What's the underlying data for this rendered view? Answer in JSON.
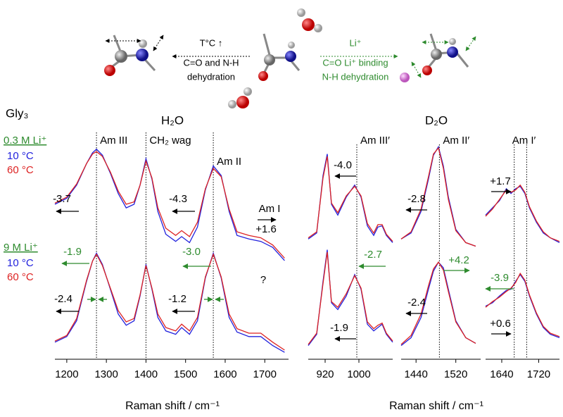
{
  "header": {
    "title": "Gly₃"
  },
  "scheme": {
    "left": [
      "T°C ↑",
      "C=O and N-H",
      "dehydration"
    ],
    "left_color": "#000000",
    "right": [
      "Li⁺",
      "C=O Li⁺ binding",
      "N-H dehydration"
    ],
    "right_color": "#2e8b2e"
  },
  "chart_data": [
    {
      "type": "line",
      "title": "H₂O",
      "xlabel": "Raman shift / cm⁻¹",
      "group_color": "#2e8b2e",
      "xlim": [
        1170,
        1760
      ],
      "xticks": [
        1200,
        1300,
        1400,
        1500,
        1600,
        1700
      ],
      "ylim": [
        0,
        100
      ],
      "x": [
        1170,
        1200,
        1225,
        1250,
        1265,
        1275,
        1290,
        1310,
        1330,
        1350,
        1370,
        1385,
        1400,
        1415,
        1430,
        1450,
        1475,
        1490,
        1510,
        1530,
        1550,
        1570,
        1590,
        1610,
        1630,
        1660,
        1690,
        1720,
        1750
      ],
      "series": [
        {
          "group": "0.3 M Li⁺",
          "name": "10 °C",
          "color": "#2222dd",
          "values": [
            50,
            55,
            66,
            84,
            93,
            96,
            91,
            76,
            59,
            47,
            50,
            66,
            88,
            71,
            44,
            25,
            19,
            23,
            18,
            31,
            62,
            82,
            74,
            44,
            24,
            21,
            19,
            14,
            3
          ]
        },
        {
          "group": "0.3 M Li⁺",
          "name": "60 °C",
          "color": "#dd2222",
          "values": [
            51,
            56,
            67,
            84,
            92,
            94,
            90,
            77,
            61,
            50,
            52,
            66,
            86,
            72,
            47,
            30,
            24,
            28,
            23,
            35,
            63,
            80,
            73,
            46,
            27,
            24,
            22,
            16,
            5
          ]
        },
        {
          "group": "9 M Li⁺",
          "name": "10 °C",
          "color": "#2222dd",
          "values": [
            12,
            17,
            31,
            66,
            84,
            91,
            81,
            59,
            37,
            27,
            31,
            53,
            81,
            59,
            34,
            22,
            19,
            25,
            19,
            31,
            69,
            91,
            69,
            34,
            21,
            17,
            17,
            9,
            3
          ]
        },
        {
          "group": "9 M Li⁺",
          "name": "60 °C",
          "color": "#dd2222",
          "values": [
            13,
            18,
            33,
            67,
            84,
            90,
            80,
            60,
            40,
            30,
            33,
            54,
            80,
            60,
            37,
            25,
            22,
            28,
            22,
            34,
            70,
            90,
            70,
            37,
            24,
            20,
            20,
            12,
            5
          ]
        }
      ],
      "markers": [
        {
          "label": "Am III",
          "x": 1275
        },
        {
          "label": "CH₂ wag",
          "x": 1400
        },
        {
          "label": "Am II",
          "x": 1570
        }
      ],
      "annotations": [
        {
          "text": "-3.7",
          "color": "#000000",
          "arrow": "left"
        },
        {
          "text": "-4.3",
          "color": "#000000",
          "arrow": "left"
        },
        {
          "text": "Am I",
          "color": "#000000",
          "arrow": "none"
        },
        {
          "text": "+1.6",
          "color": "#000000",
          "arrow": "right"
        },
        {
          "text": "-1.9",
          "color": "#2e8b2e",
          "arrow": "left"
        },
        {
          "text": "-3.0",
          "color": "#2e8b2e",
          "arrow": "left"
        },
        {
          "text": "-2.4",
          "color": "#000000",
          "arrow": "left"
        },
        {
          "text": "-1.2",
          "color": "#000000",
          "arrow": "left"
        },
        {
          "text": "?",
          "color": "#000000",
          "arrow": "none"
        }
      ]
    },
    {
      "type": "line",
      "title": "D₂O",
      "xlabel": "Raman shift / cm⁻¹",
      "xlim": [
        880,
        1080
      ],
      "xticks": [
        920,
        1000
      ],
      "ylim": [
        0,
        100
      ],
      "x": [
        880,
        900,
        915,
        925,
        935,
        950,
        970,
        990,
        1005,
        1020,
        1035,
        1045,
        1055,
        1065,
        1080
      ],
      "series": [
        {
          "group": "0.3 M Li⁺",
          "name": "10 °C",
          "color": "#2222dd",
          "values": [
            21,
            26,
            74,
            92,
            50,
            41,
            56,
            66,
            56,
            32,
            24,
            31,
            32,
            24,
            18
          ]
        },
        {
          "group": "0.3 M Li⁺",
          "name": "60 °C",
          "color": "#dd2222",
          "values": [
            22,
            27,
            72,
            90,
            51,
            43,
            57,
            65,
            57,
            34,
            26,
            33,
            33,
            25,
            19
          ]
        },
        {
          "group": "9 M Li⁺",
          "name": "10 °C",
          "color": "#2222dd",
          "values": [
            9,
            19,
            66,
            94,
            47,
            41,
            53,
            72,
            59,
            28,
            22,
            25,
            28,
            19,
            12
          ]
        },
        {
          "group": "9 M Li⁺",
          "name": "60 °C",
          "color": "#dd2222",
          "values": [
            10,
            20,
            64,
            92,
            48,
            43,
            55,
            71,
            60,
            30,
            24,
            27,
            29,
            20,
            13
          ]
        }
      ],
      "markers": [
        {
          "label": "Am III′",
          "x": 995
        }
      ],
      "annotations": [
        {
          "text": "-4.0",
          "color": "#000000",
          "arrow": "left"
        },
        {
          "text": "-2.7",
          "color": "#2e8b2e",
          "arrow": "left"
        },
        {
          "text": "-1.9",
          "color": "#000000",
          "arrow": "left"
        }
      ]
    },
    {
      "type": "line",
      "xlim": [
        1410,
        1570
      ],
      "xticks": [
        1440,
        1520
      ],
      "ylim": [
        0,
        100
      ],
      "x": [
        1410,
        1430,
        1450,
        1465,
        1475,
        1485,
        1495,
        1505,
        1520,
        1540,
        1560
      ],
      "series": [
        {
          "group": "0.3 M Li⁺",
          "name": "10 °C",
          "color": "#2222dd",
          "values": [
            21,
            26,
            44,
            71,
            91,
            98,
            82,
            56,
            29,
            18,
            15
          ]
        },
        {
          "group": "0.3 M Li⁺",
          "name": "60 °C",
          "color": "#dd2222",
          "values": [
            21,
            27,
            46,
            73,
            92,
            97,
            80,
            54,
            28,
            18,
            15
          ]
        },
        {
          "group": "9 M Li⁺",
          "name": "10 °C",
          "color": "#2222dd",
          "values": [
            9,
            16,
            34,
            59,
            75,
            83,
            78,
            59,
            31,
            16,
            11
          ]
        },
        {
          "group": "9 M Li⁺",
          "name": "60 °C",
          "color": "#dd2222",
          "values": [
            10,
            18,
            37,
            62,
            77,
            83,
            76,
            57,
            30,
            16,
            11
          ]
        }
      ],
      "markers": [
        {
          "label": "Am II′",
          "x": 1487
        }
      ],
      "annotations": [
        {
          "text": "-2.8",
          "color": "#000000",
          "arrow": "left"
        },
        {
          "text": "+4.2",
          "color": "#2e8b2e",
          "arrow": "right"
        },
        {
          "text": "-2.4",
          "color": "#000000",
          "arrow": "left"
        }
      ]
    },
    {
      "type": "line",
      "xlim": [
        1605,
        1765
      ],
      "xticks": [
        1640,
        1720
      ],
      "ylim": [
        0,
        100
      ],
      "x": [
        1605,
        1620,
        1635,
        1650,
        1660,
        1670,
        1680,
        1690,
        1700,
        1715,
        1730,
        1745,
        1765
      ],
      "series": [
        {
          "group": "0.3 M Li⁺",
          "name": "10 °C",
          "color": "#2222dd",
          "values": [
            41,
            47,
            53,
            63,
            59,
            63,
            65,
            59,
            47,
            35,
            26,
            22,
            18
          ]
        },
        {
          "group": "0.3 M Li⁺",
          "name": "60 °C",
          "color": "#dd2222",
          "values": [
            40,
            46,
            54,
            62,
            60,
            62,
            66,
            60,
            48,
            36,
            27,
            22,
            19
          ]
        },
        {
          "group": "9 M Li⁺",
          "name": "10 °C",
          "color": "#2222dd",
          "values": [
            44,
            47,
            53,
            58,
            59,
            66,
            72,
            66,
            53,
            37,
            25,
            19,
            16
          ]
        },
        {
          "group": "9 M Li⁺",
          "name": "60 °C",
          "color": "#dd2222",
          "values": [
            43,
            48,
            52,
            57,
            60,
            65,
            73,
            67,
            54,
            38,
            26,
            20,
            17
          ]
        }
      ],
      "markers": [
        {
          "label": "Am I′",
          "x": 1667
        },
        {
          "x": 1694
        }
      ],
      "annotations": [
        {
          "text": "+1.7",
          "color": "#000000",
          "arrow": "right"
        },
        {
          "text": "-3.9",
          "color": "#2e8b2e",
          "arrow": "left"
        },
        {
          "text": "+0.6",
          "color": "#000000",
          "arrow": "right"
        }
      ]
    }
  ]
}
